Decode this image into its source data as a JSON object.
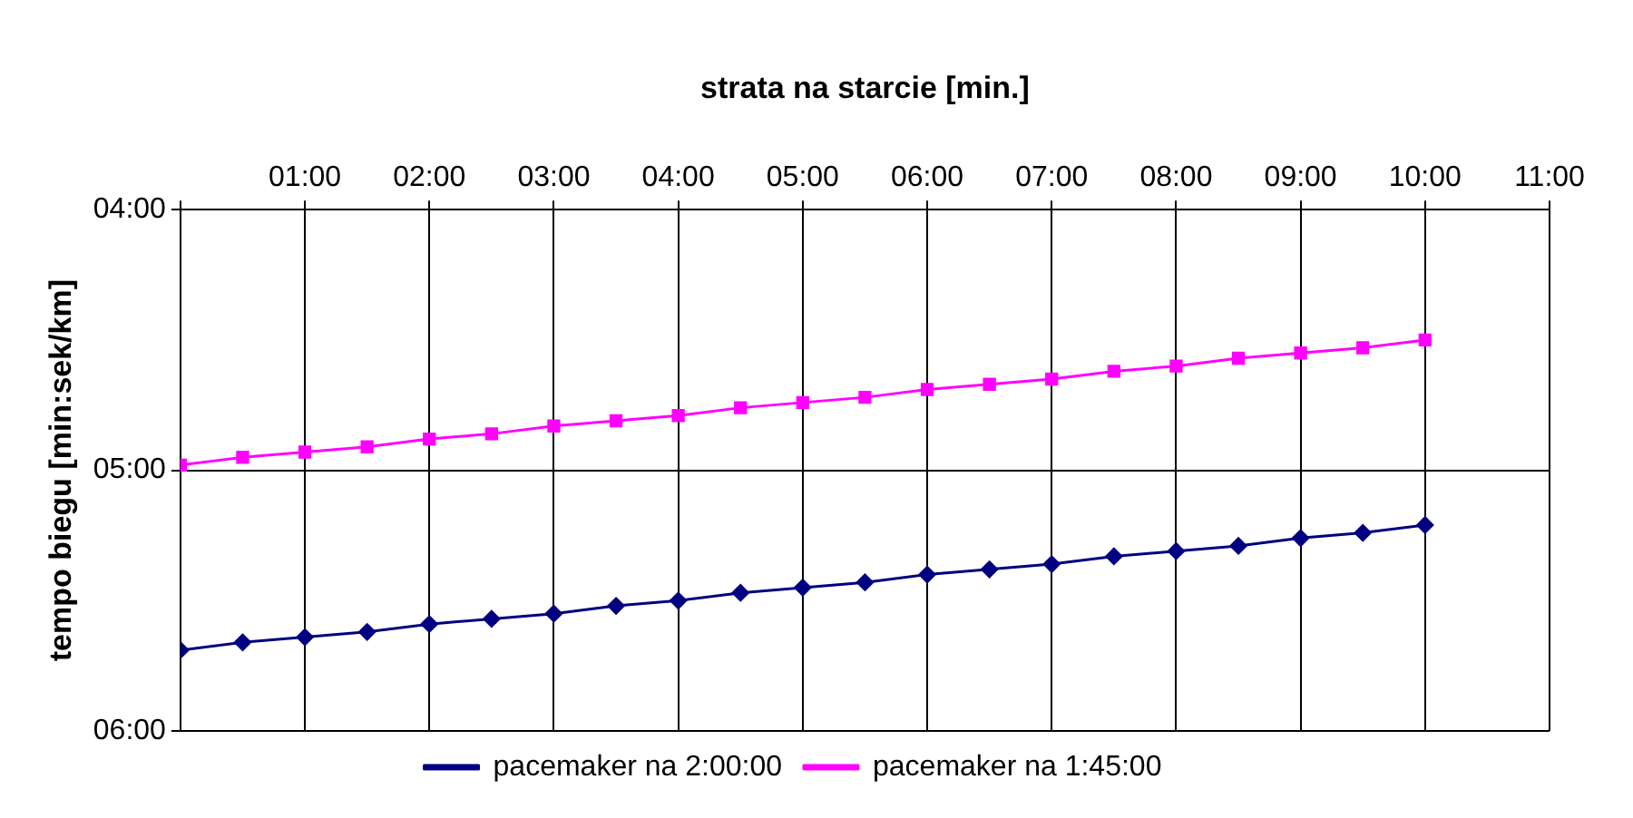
{
  "chart_data": {
    "type": "line",
    "xlabel": "strata na starcie [min.]",
    "ylabel": "tempo biegu [min:sek/km]",
    "x": [
      0,
      0.5,
      1,
      1.5,
      2,
      2.5,
      3,
      3.5,
      4,
      4.5,
      5,
      5.5,
      6,
      6.5,
      7,
      7.5,
      8,
      8.5,
      9,
      9.5,
      10
    ],
    "series": [
      {
        "name": "pacemaker na 2:00:00",
        "color": "#000080",
        "marker": "diamond",
        "values": [
          5.69,
          5.66,
          5.64,
          5.62,
          5.59,
          5.57,
          5.55,
          5.52,
          5.5,
          5.47,
          5.45,
          5.43,
          5.4,
          5.38,
          5.36,
          5.33,
          5.31,
          5.29,
          5.26,
          5.24,
          5.21
        ]
      },
      {
        "name": "pacemaker na 1:45:00",
        "color": "#ff00ff",
        "marker": "square",
        "values": [
          4.98,
          4.95,
          4.93,
          4.91,
          4.88,
          4.86,
          4.83,
          4.81,
          4.79,
          4.76,
          4.74,
          4.72,
          4.69,
          4.67,
          4.65,
          4.62,
          4.6,
          4.57,
          4.55,
          4.53,
          4.5
        ]
      }
    ],
    "xlim": [
      0,
      11
    ],
    "xticks": [
      {
        "value": 0,
        "label": null
      },
      {
        "value": 1,
        "label": "01:00"
      },
      {
        "value": 2,
        "label": "02:00"
      },
      {
        "value": 3,
        "label": "03:00"
      },
      {
        "value": 4,
        "label": "04:00"
      },
      {
        "value": 5,
        "label": "05:00"
      },
      {
        "value": 6,
        "label": "06:00"
      },
      {
        "value": 7,
        "label": "07:00"
      },
      {
        "value": 8,
        "label": "08:00"
      },
      {
        "value": 9,
        "label": "09:00"
      },
      {
        "value": 10,
        "label": "10:00"
      },
      {
        "value": 11,
        "label": "11:00"
      }
    ],
    "ylim": [
      6,
      4
    ],
    "yticks": [
      {
        "value": 4,
        "label": "04:00"
      },
      {
        "value": 5,
        "label": "05:00"
      },
      {
        "value": 6,
        "label": "06:00"
      }
    ],
    "grid": true,
    "legend": "bottom",
    "line_style": "solid"
  }
}
